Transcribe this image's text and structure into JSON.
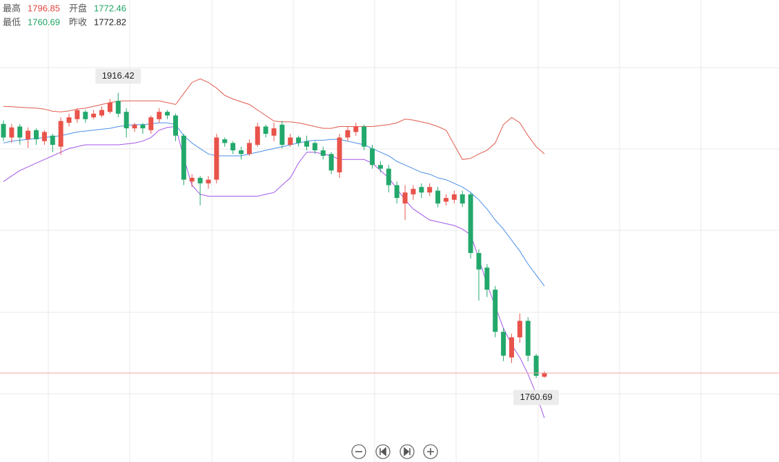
{
  "chart_data": {
    "type": "candlestick",
    "header": [
      {
        "label": "最高",
        "value": 1796.85,
        "color": "#e0463e"
      },
      {
        "label": "开盘",
        "value": 1772.46,
        "color": "#1fa463"
      },
      {
        "label": "最低",
        "value": 1760.69,
        "color": "#1fa463"
      },
      {
        "label": "昨收",
        "value": 1772.82,
        "color": "#222222"
      }
    ],
    "up_color": "#e8534a",
    "down_color": "#23a86b",
    "last_line_color": "#f0a39c",
    "ylim": [
      1715,
      1967
    ],
    "max_label": 1916.42,
    "min_label": 1760.69,
    "open": [
      1899.4,
      1892,
      1898,
      1891,
      1896,
      1890,
      1893,
      1887,
      1900,
      1902,
      1906,
      1903,
      1904,
      1906,
      1912,
      1906,
      1897,
      1899,
      1896,
      1902,
      1906,
      1904,
      1893,
      1868,
      1870,
      1867,
      1869,
      1891,
      1889,
      1885,
      1883,
      1888,
      1898,
      1893,
      1899,
      1888,
      1892,
      1890,
      1889,
      1885,
      1883,
      1873,
      1892,
      1895,
      1898,
      1886,
      1877,
      1875,
      1866,
      1856,
      1861,
      1865,
      1862,
      1863,
      1857,
      1858,
      1861,
      1861,
      1829,
      1821,
      1809,
      1786,
      1772,
      1783,
      1792,
      1773,
      1761.5
    ],
    "high": [
      1901.3,
      1899.4,
      1899.4,
      1897.5,
      1897,
      1896,
      1894,
      1903,
      1905,
      1908,
      1907,
      1907,
      1909,
      1913,
      1916.42,
      1908,
      1900,
      1900,
      1904,
      1908,
      1907,
      1905,
      1894,
      1872,
      1871,
      1871,
      1894,
      1892,
      1890,
      1887,
      1891,
      1900,
      1899,
      1900,
      1901,
      1894,
      1893,
      1893,
      1890,
      1887,
      1884,
      1894,
      1898,
      1900,
      1899,
      1888,
      1879,
      1877,
      1868,
      1866,
      1866,
      1867,
      1867,
      1865,
      1861,
      1863,
      1863,
      1862,
      1831,
      1823,
      1811,
      1788,
      1785,
      1796,
      1794,
      1774,
      1764.5
    ],
    "low": [
      1890,
      1889,
      1888.1,
      1886.3,
      1888,
      1888,
      1884,
      1882.5,
      1898,
      1900,
      1900,
      1902,
      1903,
      1905,
      1903,
      1892,
      1895,
      1894,
      1894,
      1900,
      1902,
      1890,
      1866,
      1865,
      1855,
      1864,
      1867,
      1887,
      1883,
      1880,
      1882,
      1887,
      1892,
      1890,
      1886,
      1887,
      1887,
      1885,
      1883,
      1880,
      1872,
      1870,
      1890,
      1893,
      1885,
      1875,
      1873,
      1862,
      1856,
      1847,
      1858,
      1859,
      1860,
      1854,
      1855,
      1856,
      1854,
      1826,
      1803,
      1805,
      1783,
      1770,
      1769,
      1780,
      1770,
      1760.69,
      1761
    ],
    "close": [
      1892,
      1897.5,
      1892,
      1895.7,
      1891,
      1895,
      1888,
      1901,
      1903,
      1906.9,
      1902,
      1905,
      1907,
      1911,
      1905,
      1897,
      1899,
      1897,
      1903,
      1906,
      1904,
      1893,
      1869,
      1870,
      1867,
      1869,
      1892,
      1889,
      1885,
      1883,
      1889,
      1898,
      1894,
      1897,
      1888,
      1892,
      1889,
      1887,
      1885,
      1882,
      1874,
      1892,
      1896,
      1898,
      1887,
      1877,
      1875,
      1866,
      1859,
      1862,
      1864,
      1862,
      1865,
      1856,
      1859,
      1861,
      1856,
      1829,
      1820,
      1809,
      1786,
      1773,
      1783,
      1792,
      1773,
      1762,
      1763.5
    ],
    "bands": [
      {
        "color": "#e0584a",
        "values": [
          1909,
          1908.8,
          1908.5,
          1908.2,
          1908,
          1907.5,
          1906.3,
          1906,
          1906.5,
          1907.5,
          1908,
          1909,
          1910,
          1911,
          1911.8,
          1912,
          1912,
          1912,
          1912,
          1912,
          1911,
          1910,
          1916,
          1922,
          1924,
          1922,
          1919,
          1915,
          1913,
          1911.5,
          1910,
          1907,
          1904,
          1901,
          1900.5,
          1900.5,
          1900,
          1899,
          1898,
          1897,
          1897,
          1898,
          1898,
          1898,
          1898,
          1898,
          1898.5,
          1899,
          1900,
          1902,
          1901.5,
          1900.5,
          1899.5,
          1898,
          1896,
          1888,
          1880,
          1880.6,
          1883,
          1885,
          1889,
          1899,
          1903,
          1900,
          1893,
          1887,
          1883
        ]
      },
      {
        "color": "#4a8ee8",
        "values": [
          1889,
          1890,
          1890.5,
          1891,
          1891.5,
          1892,
          1892.5,
          1893,
          1894,
          1895,
          1895.5,
          1896,
          1896.5,
          1897,
          1898,
          1898.5,
          1899,
          1899,
          1899.5,
          1900,
          1900,
          1899,
          1893,
          1889,
          1886,
          1883,
          1882,
          1882,
          1882,
          1882,
          1883,
          1884,
          1885,
          1886,
          1887,
          1888,
          1889,
          1890,
          1890.5,
          1890.5,
          1891,
          1891,
          1890,
          1889,
          1888,
          1886,
          1884,
          1882,
          1879,
          1877,
          1875,
          1873,
          1872,
          1870,
          1869,
          1867,
          1865,
          1862,
          1858,
          1853,
          1847,
          1842,
          1836,
          1830,
          1823,
          1817,
          1811
        ]
      },
      {
        "color": "#a155e8",
        "values": [
          1868,
          1871,
          1874,
          1876,
          1878,
          1880,
          1882,
          1884,
          1886,
          1887,
          1888,
          1888,
          1888,
          1888,
          1888,
          1888.5,
          1889,
          1890,
          1892,
          1896,
          1897.5,
          1898,
          1881,
          1866,
          1861,
          1860,
          1860,
          1860,
          1860,
          1860,
          1860,
          1860,
          1861,
          1862,
          1866,
          1870,
          1878,
          1884,
          1884,
          1883,
          1882,
          1880,
          1880,
          1880,
          1880,
          1878,
          1874,
          1870,
          1864,
          1858,
          1853,
          1850,
          1847,
          1846,
          1845,
          1844,
          1842,
          1839,
          1826,
          1812,
          1800,
          1788,
          1779,
          1772,
          1763,
          1752,
          1739
        ]
      }
    ]
  }
}
